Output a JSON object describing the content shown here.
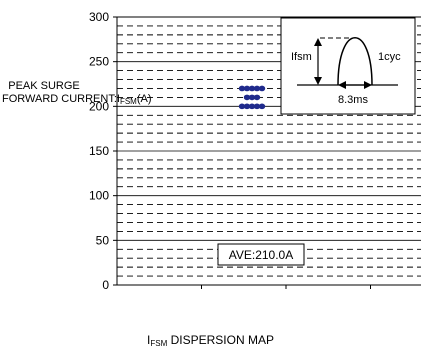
{
  "chart_data": {
    "type": "scatter",
    "title": "",
    "ylabel": {
      "line1": "PEAK SURGE",
      "line2_prefix": "FORWARD CURRENT:I",
      "line2_sub": "FSM",
      "line2_suffix": "(A)"
    },
    "xlabel": {
      "prefix": "I",
      "sub": "FSM",
      "suffix": " DISPERSION MAP"
    },
    "ylim": [
      0,
      300
    ],
    "yticks": [
      "0",
      "50",
      "100",
      "150",
      "200",
      "250",
      "300"
    ],
    "grid": true,
    "points": [
      {
        "x": 0.35,
        "y": 200
      },
      {
        "x": 0.4,
        "y": 200
      },
      {
        "x": 0.45,
        "y": 200
      },
      {
        "x": 0.5,
        "y": 200
      },
      {
        "x": 0.55,
        "y": 200
      },
      {
        "x": 0.4,
        "y": 210
      },
      {
        "x": 0.45,
        "y": 210
      },
      {
        "x": 0.5,
        "y": 210
      },
      {
        "x": 0.35,
        "y": 220
      },
      {
        "x": 0.4,
        "y": 220
      },
      {
        "x": 0.45,
        "y": 220
      },
      {
        "x": 0.5,
        "y": 220
      },
      {
        "x": 0.55,
        "y": 220
      }
    ],
    "marker_color": "#1f2a8c",
    "average_label": "AVE:210.0A",
    "inset": {
      "peak_label": "Ifsm",
      "cycle_label": "1cyc",
      "width_label": "8.3ms"
    }
  }
}
